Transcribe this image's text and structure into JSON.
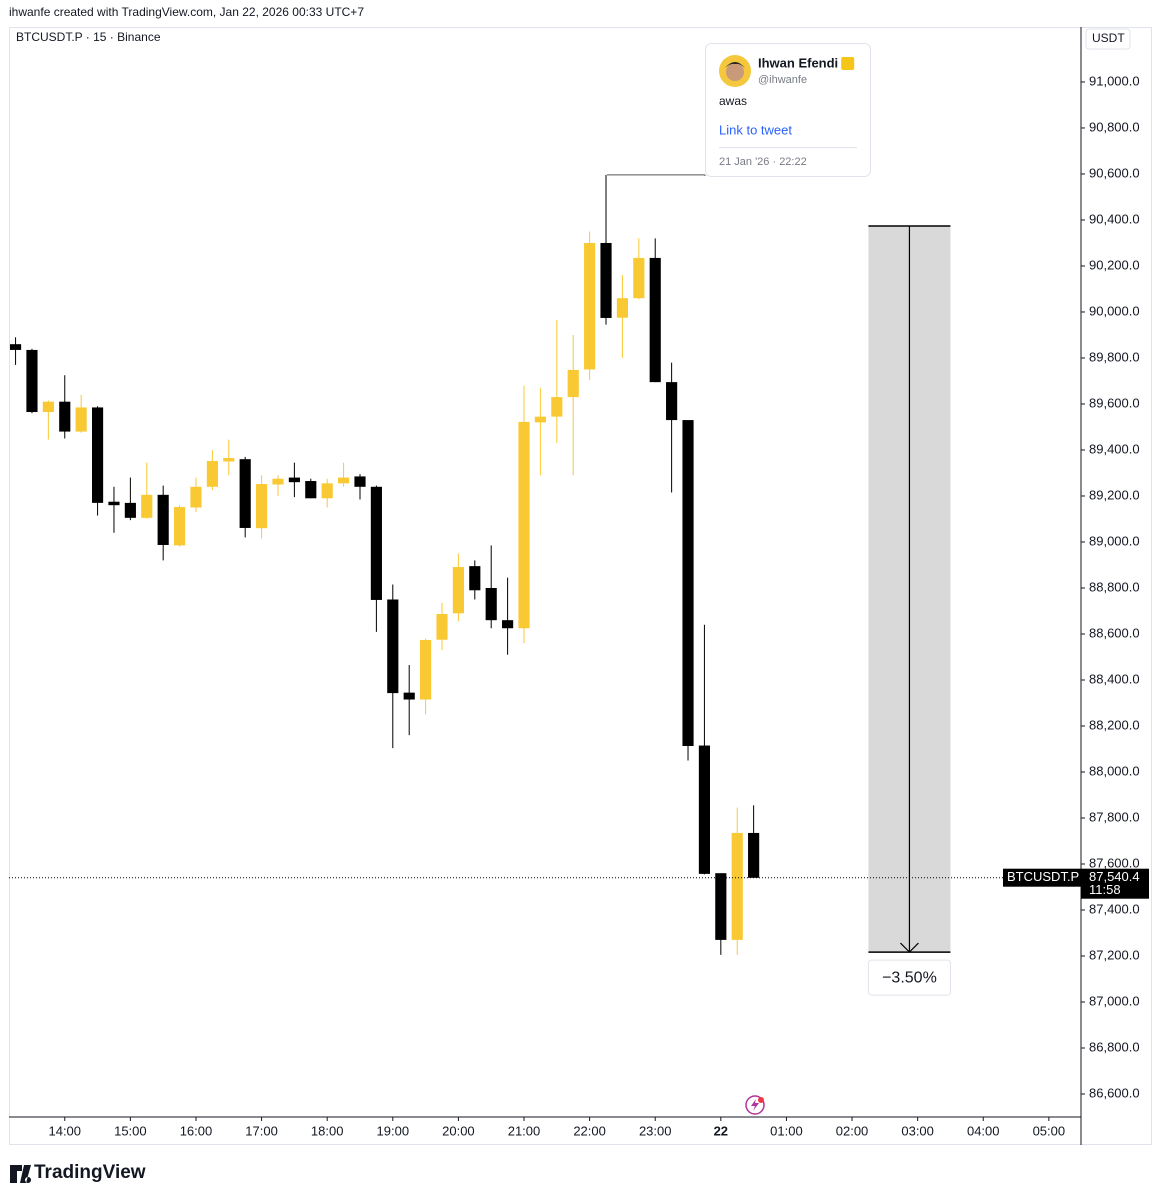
{
  "header": "ihwanfe created with TradingView.com, Jan 22, 2026 00:33 UTC+7",
  "footer": {
    "brand": "TradingView"
  },
  "chart_data": {
    "type": "candlestick",
    "title": "BTCUSDT.P · 15 · Binance",
    "y_unit": "USDT",
    "x": [
      13.25,
      13.5,
      13.75,
      14,
      14.25,
      14.5,
      14.75,
      15,
      15.25,
      15.5,
      15.75,
      16,
      16.25,
      16.5,
      16.75,
      17,
      17.25,
      17.5,
      17.75,
      18,
      18.25,
      18.5,
      18.75,
      19,
      19.25,
      19.5,
      19.75,
      20,
      20.25,
      20.5,
      20.75,
      21,
      21.25,
      21.5,
      21.75,
      22,
      22.25,
      22.5,
      22.75,
      23,
      23.25,
      23.5,
      23.75,
      24,
      24.25,
      24.5
    ],
    "open": [
      89860,
      89835,
      89565,
      89610,
      89480,
      89585,
      89175,
      89170,
      89105,
      89205,
      88985,
      89150,
      89240,
      89350,
      89360,
      89060,
      89250,
      89280,
      89265,
      89190,
      89255,
      89285,
      89240,
      88750,
      88345,
      88315,
      88575,
      88690,
      88895,
      88800,
      88660,
      88625,
      89520,
      89545,
      89630,
      89750,
      90300,
      89975,
      90060,
      90235,
      89695,
      89530,
      88115,
      87560,
      87270,
      87735
    ],
    "high": [
      89890,
      89840,
      89615,
      89725,
      89640,
      89590,
      89240,
      89280,
      89345,
      89245,
      89160,
      89280,
      89400,
      89445,
      89370,
      89290,
      89290,
      89345,
      89275,
      89275,
      89345,
      89295,
      89245,
      88815,
      88465,
      88580,
      88735,
      88950,
      88920,
      88985,
      88845,
      89680,
      89670,
      89965,
      89900,
      90350,
      90596,
      90160,
      90320,
      90320,
      89780,
      89530,
      88640,
      87560,
      87845,
      87855
    ],
    "low": [
      89770,
      89560,
      89445,
      89450,
      89475,
      89115,
      89040,
      89095,
      89100,
      88920,
      88980,
      89130,
      89225,
      89290,
      89020,
      89015,
      89200,
      89195,
      89190,
      89150,
      89240,
      89185,
      88609,
      88104,
      88160,
      88250,
      88530,
      88655,
      88750,
      88625,
      88510,
      88560,
      89290,
      89430,
      89290,
      89705,
      89945,
      89800,
      90055,
      89695,
      89215,
      88050,
      87555,
      87205,
      87205,
      87540
    ],
    "close": [
      89835,
      89565,
      89610,
      89480,
      89585,
      89170,
      89160,
      89105,
      89205,
      88987,
      89152,
      89240,
      89352,
      89365,
      89061,
      89252,
      89275,
      89260,
      89190,
      89255,
      89280,
      89240,
      88748,
      88343,
      88315,
      88574,
      88687,
      88891,
      88790,
      88660,
      88625,
      89522,
      89545,
      89630,
      89748,
      90300,
      89974,
      90060,
      90235,
      89695,
      89530,
      88113,
      87557,
      87270,
      87735,
      87540
    ],
    "up_color": "#f9c933",
    "down_color": "#000000",
    "xlim": [
      13.15,
      29.49
    ],
    "xticks": [
      {
        "value": 14,
        "label": "14:00"
      },
      {
        "value": 15,
        "label": "15:00"
      },
      {
        "value": 16,
        "label": "16:00"
      },
      {
        "value": 17,
        "label": "17:00"
      },
      {
        "value": 18,
        "label": "18:00"
      },
      {
        "value": 19,
        "label": "19:00"
      },
      {
        "value": 20,
        "label": "20:00"
      },
      {
        "value": 21,
        "label": "21:00"
      },
      {
        "value": 22,
        "label": "22:00"
      },
      {
        "value": 23,
        "label": "23:00"
      },
      {
        "value": 24,
        "label": "22"
      },
      {
        "value": 25,
        "label": "01:00"
      },
      {
        "value": 26,
        "label": "02:00"
      },
      {
        "value": 27,
        "label": "03:00"
      },
      {
        "value": 28,
        "label": "04:00"
      },
      {
        "value": 29,
        "label": "05:00"
      }
    ],
    "ylim": [
      86500,
      91239
    ],
    "yticks": [
      {
        "value": 86600,
        "label": "86,600.0"
      },
      {
        "value": 86800,
        "label": "86,800.0"
      },
      {
        "value": 87000,
        "label": "87,000.0"
      },
      {
        "value": 87200,
        "label": "87,200.0"
      },
      {
        "value": 87400,
        "label": "87,400.0"
      },
      {
        "value": 87600,
        "label": "87,600.0"
      },
      {
        "value": 87800,
        "label": "87,800.0"
      },
      {
        "value": 88000,
        "label": "88,000.0"
      },
      {
        "value": 88200,
        "label": "88,200.0"
      },
      {
        "value": 88400,
        "label": "88,400.0"
      },
      {
        "value": 88600,
        "label": "88,600.0"
      },
      {
        "value": 88800,
        "label": "88,800.0"
      },
      {
        "value": 89000,
        "label": "89,000.0"
      },
      {
        "value": 89200,
        "label": "89,200.0"
      },
      {
        "value": 89400,
        "label": "89,400.0"
      },
      {
        "value": 89600,
        "label": "89,600.0"
      },
      {
        "value": 89800,
        "label": "89,800.0"
      },
      {
        "value": 90000,
        "label": "90,000.0"
      },
      {
        "value": 90200,
        "label": "90,200.0"
      },
      {
        "value": 90400,
        "label": "90,400.0"
      },
      {
        "value": 90600,
        "label": "90,600.0"
      },
      {
        "value": 90800,
        "label": "90,800.0"
      },
      {
        "value": 91000,
        "label": "91,000.0"
      }
    ],
    "last_price": {
      "symbol": "BTCUSDT.P",
      "value": 87540.4,
      "label": "87,540.4",
      "countdown": "11:58"
    },
    "measure": {
      "top": 90374,
      "bottom": 87217,
      "label": "−3.50%",
      "xrange": [
        26.25,
        27.5
      ]
    },
    "tweet": {
      "name": "Ihwan Efendi",
      "handle": "@ihwanfe",
      "text": "awas",
      "link": "Link to tweet",
      "date": "21 Jan '26 · 22:22",
      "price": 90596
    }
  }
}
